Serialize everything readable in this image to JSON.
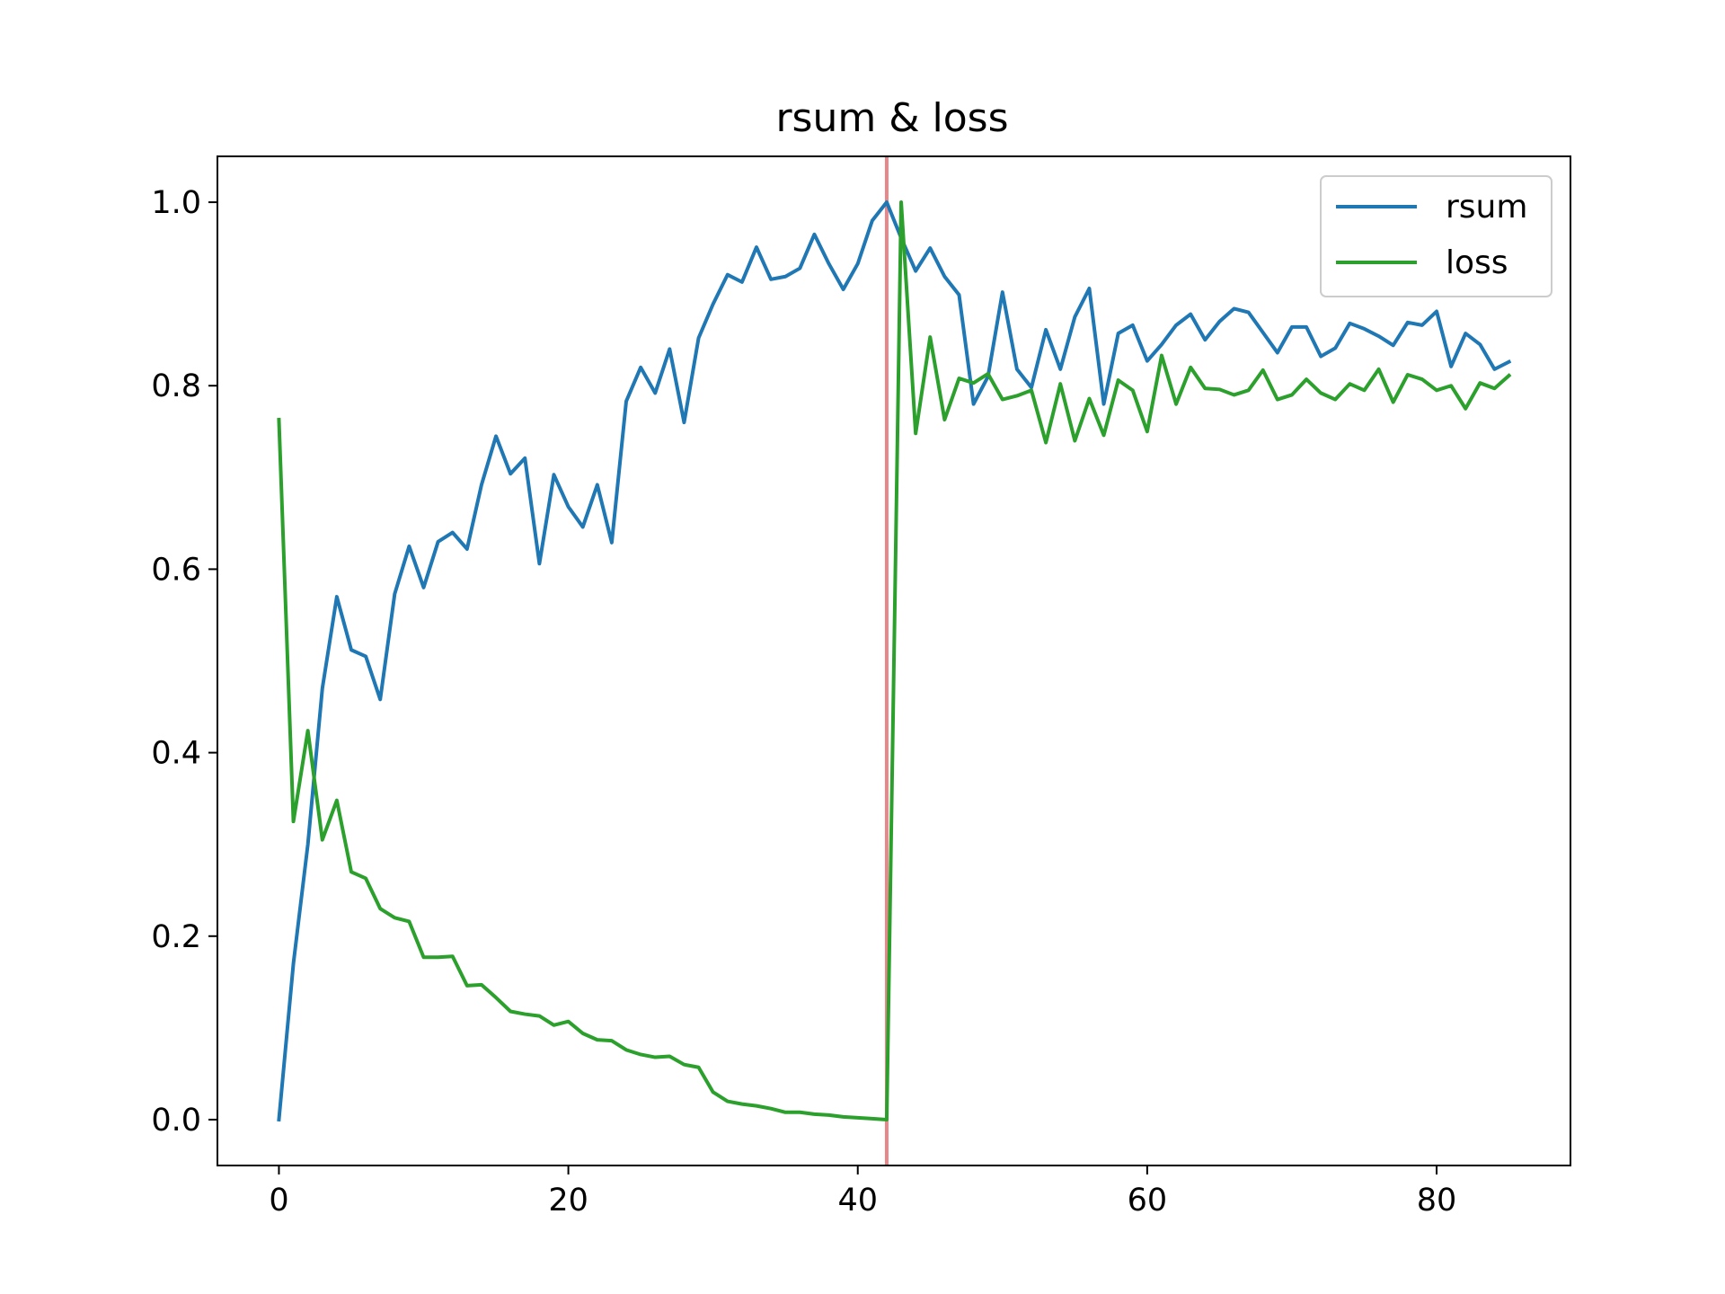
{
  "chart_data": {
    "type": "line",
    "title": "rsum & loss",
    "xlabel": "",
    "ylabel": "",
    "xlim": [
      -4.25,
      89.25
    ],
    "ylim": [
      -0.05,
      1.05
    ],
    "x_ticks": [
      0,
      20,
      40,
      60,
      80
    ],
    "y_ticks": [
      0.0,
      0.2,
      0.4,
      0.6,
      0.8,
      1.0
    ],
    "x_tick_labels": [
      "0",
      "20",
      "40",
      "60",
      "80"
    ],
    "y_tick_labels": [
      "0.0",
      "0.2",
      "0.4",
      "0.6",
      "0.8",
      "1.0"
    ],
    "grid": false,
    "legend_position": "top-right",
    "vertical_line": {
      "x": 42,
      "color": "#e8878a"
    },
    "series": [
      {
        "name": "rsum",
        "color": "#1f77b4",
        "x_start": 0,
        "values": [
          0.0,
          0.17,
          0.3,
          0.47,
          0.57,
          0.512,
          0.505,
          0.458,
          0.573,
          0.625,
          0.58,
          0.63,
          0.64,
          0.622,
          0.692,
          0.745,
          0.704,
          0.721,
          0.606,
          0.703,
          0.668,
          0.646,
          0.692,
          0.629,
          0.783,
          0.82,
          0.792,
          0.84,
          0.76,
          0.852,
          0.889,
          0.921,
          0.913,
          0.951,
          0.916,
          0.919,
          0.928,
          0.965,
          0.933,
          0.905,
          0.933,
          0.98,
          1.0,
          0.961,
          0.925,
          0.95,
          0.919,
          0.899,
          0.78,
          0.81,
          0.902,
          0.818,
          0.798,
          0.861,
          0.818,
          0.875,
          0.906,
          0.78,
          0.857,
          0.866,
          0.827,
          0.845,
          0.866,
          0.878,
          0.85,
          0.87,
          0.884,
          0.88,
          0.858,
          0.836,
          0.864,
          0.864,
          0.832,
          0.841,
          0.868,
          0.862,
          0.854,
          0.844,
          0.869,
          0.866,
          0.881,
          0.821,
          0.857,
          0.845,
          0.818,
          0.826
        ]
      },
      {
        "name": "loss",
        "color": "#2ca02c",
        "x_start": 0,
        "values": [
          0.763,
          0.325,
          0.424,
          0.305,
          0.348,
          0.27,
          0.263,
          0.23,
          0.22,
          0.216,
          0.177,
          0.177,
          0.178,
          0.146,
          0.147,
          0.133,
          0.118,
          0.115,
          0.113,
          0.103,
          0.107,
          0.094,
          0.087,
          0.086,
          0.076,
          0.071,
          0.068,
          0.069,
          0.06,
          0.057,
          0.03,
          0.02,
          0.017,
          0.015,
          0.012,
          0.008,
          0.008,
          0.006,
          0.005,
          0.003,
          0.002,
          0.001,
          0.0,
          1.0,
          0.748,
          0.853,
          0.763,
          0.808,
          0.803,
          0.813,
          0.785,
          0.789,
          0.795,
          0.738,
          0.802,
          0.74,
          0.786,
          0.746,
          0.806,
          0.795,
          0.75,
          0.833,
          0.78,
          0.82,
          0.797,
          0.796,
          0.79,
          0.795,
          0.817,
          0.785,
          0.79,
          0.807,
          0.792,
          0.785,
          0.802,
          0.795,
          0.818,
          0.782,
          0.812,
          0.807,
          0.795,
          0.8,
          0.775,
          0.803,
          0.797,
          0.811
        ]
      }
    ]
  }
}
